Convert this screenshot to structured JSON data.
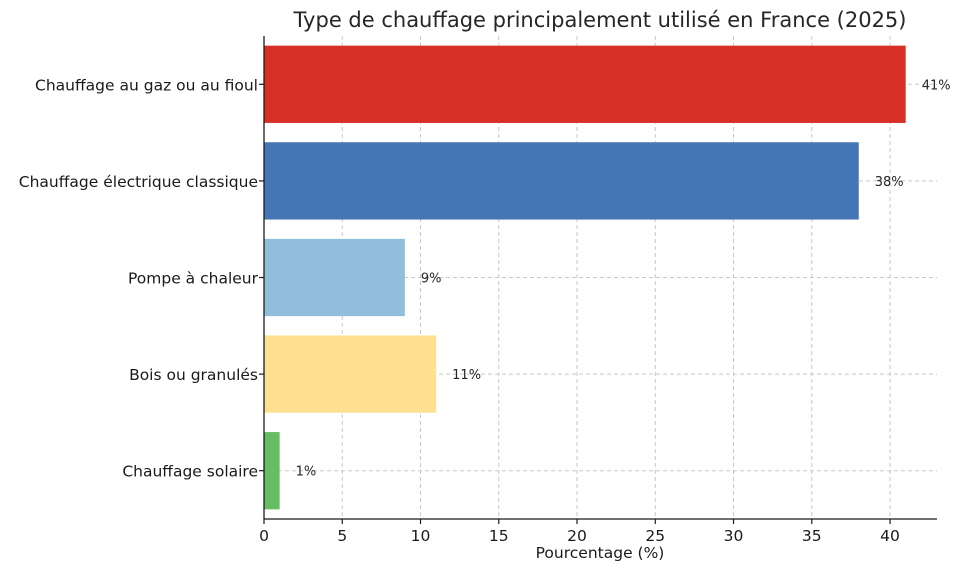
{
  "chart_data": {
    "type": "bar",
    "orientation": "horizontal",
    "title": "Type de chauffage principalement utilisé en France (2025)",
    "xlabel": "Pourcentage (%)",
    "ylabel": "",
    "xlim": [
      0,
      43
    ],
    "xticks": [
      0,
      5,
      10,
      15,
      20,
      25,
      30,
      35,
      40
    ],
    "grid": true,
    "categories": [
      "Chauffage au gaz ou au fioul",
      "Chauffage électrique classique",
      "Pompe à chaleur",
      "Bois ou granulés",
      "Chauffage solaire"
    ],
    "values": [
      41,
      38,
      9,
      11,
      1
    ],
    "value_labels": [
      "41%",
      "38%",
      "9%",
      "11%",
      "1%"
    ],
    "colors": [
      "#d73027",
      "#4575b4",
      "#91bfdb",
      "#fee090",
      "#66bd63"
    ]
  }
}
